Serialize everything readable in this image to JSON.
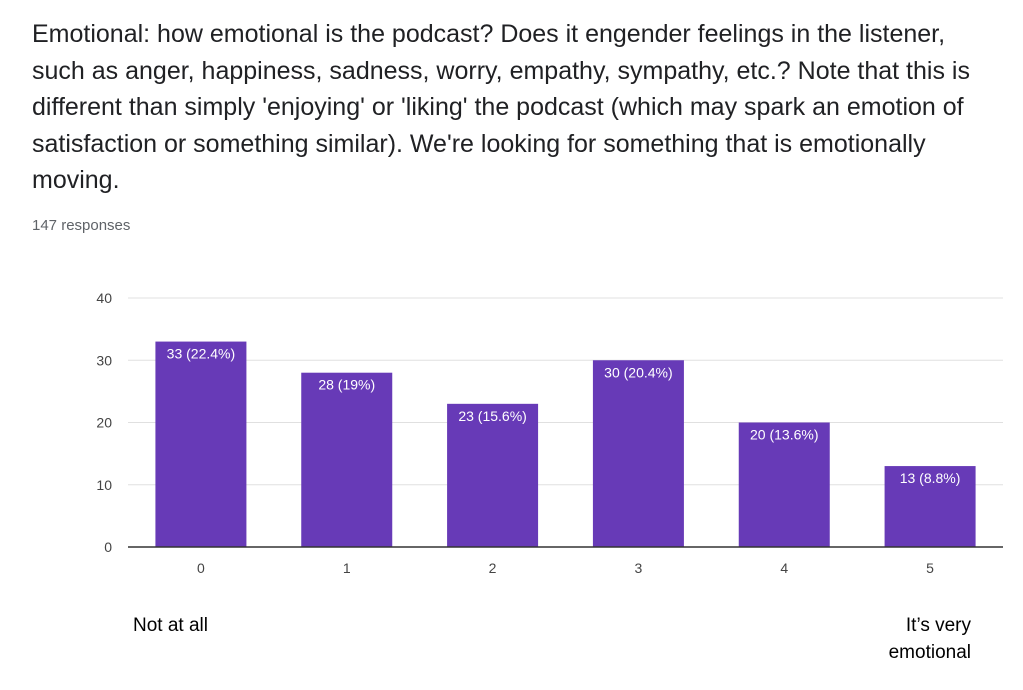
{
  "question": {
    "title": "Emotional: how emotional is the podcast? Does it engender feelings in the listener, such as anger, happiness, sadness, worry, empathy, sympathy, etc.? Note that this is different than simply 'enjoying' or 'liking' the podcast (which may spark an emotion of satisfaction or something similar). We're looking for something that is emotionally moving.",
    "responses": "147 responses"
  },
  "scale_labels": {
    "low": "Not at all",
    "high": "It’s very emotional"
  },
  "colors": {
    "bar": "#673ab7",
    "grid": "#e0e0e0",
    "axis": "#333333"
  },
  "chart_data": {
    "type": "bar",
    "categories": [
      "0",
      "1",
      "2",
      "3",
      "4",
      "5"
    ],
    "values": [
      33,
      28,
      23,
      30,
      20,
      13
    ],
    "data_labels": [
      "33 (22.4%)",
      "28 (19%)",
      "23 (15.6%)",
      "30 (20.4%)",
      "20 (13.6%)",
      "13 (8.8%)"
    ],
    "yticks": [
      0,
      10,
      20,
      30,
      40
    ],
    "ylim": [
      0,
      40
    ],
    "grid": true,
    "legend": "none"
  }
}
